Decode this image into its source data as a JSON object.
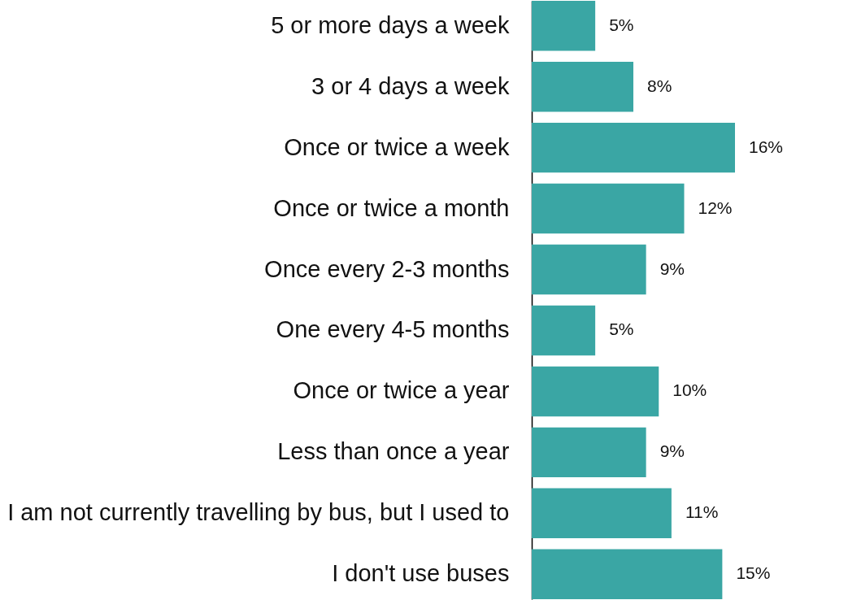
{
  "chart_data": {
    "type": "bar",
    "orientation": "horizontal",
    "categories": [
      "5 or more days a week",
      "3 or 4 days a week",
      "Once or twice a week",
      "Once or twice a month",
      "Once every 2-3 months",
      "One every 4-5 months",
      "Once or twice a year",
      "Less than once a year",
      "I am not currently travelling by bus, but I used to",
      "I don't use buses"
    ],
    "values": [
      5,
      8,
      16,
      12,
      9,
      5,
      10,
      9,
      11,
      15
    ],
    "value_labels": [
      "5%",
      "8%",
      "16%",
      "12%",
      "9%",
      "5%",
      "10%",
      "9%",
      "11%",
      "15%"
    ],
    "color": "#3aa6a4",
    "grid": false
  }
}
